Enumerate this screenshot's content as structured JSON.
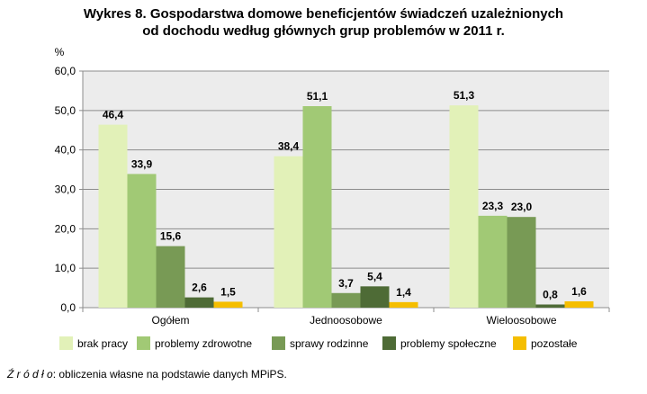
{
  "title": {
    "line1": "Wykres 8. Gospodarstwa domowe beneficjentów świadczeń uzależnionych",
    "line2": "od dochodu według głównych grup problemów w 2011 r."
  },
  "source_label": "Ź r ó d ł o",
  "source_text": ": obliczenia własne na podstawie danych MPiPS.",
  "colors": {
    "brak pracy": "#e2f1b8",
    "problemy zdrowotne": "#a1c975",
    "sprawy rodzinne": "#789a55",
    "problemy społeczne": "#4e6b36",
    "pozostałe": "#f5be00",
    "plot_bg": "#ececec"
  },
  "chart_data": {
    "type": "bar",
    "title": "Wykres 8. Gospodarstwa domowe beneficjentów świadczeń uzależnionych od dochodu według głównych grup problemów w 2011 r.",
    "ylabel": "%",
    "xlabel": "",
    "ylim": [
      0,
      60
    ],
    "yticks": [
      0,
      10,
      20,
      30,
      40,
      50,
      60
    ],
    "ytick_labels": [
      "0,0",
      "10,0",
      "20,0",
      "30,0",
      "40,0",
      "50,0",
      "60,0"
    ],
    "grid": true,
    "legend_position": "bottom",
    "categories": [
      "Ogółem",
      "Jednoosobowe",
      "Wieloosobowe"
    ],
    "series": [
      {
        "name": "brak pracy",
        "values": [
          46.4,
          38.4,
          51.3
        ],
        "labels": [
          "46,4",
          "38,4",
          "51,3"
        ]
      },
      {
        "name": "problemy zdrowotne",
        "values": [
          33.9,
          51.1,
          23.3
        ],
        "labels": [
          "33,9",
          "51,1",
          "23,3"
        ]
      },
      {
        "name": "sprawy rodzinne",
        "values": [
          15.6,
          3.7,
          23.0
        ],
        "labels": [
          "15,6",
          "3,7",
          "23,0"
        ]
      },
      {
        "name": "problemy społeczne",
        "values": [
          2.6,
          5.4,
          0.8
        ],
        "labels": [
          "2,6",
          "5,4",
          "0,8"
        ]
      },
      {
        "name": "pozostałe",
        "values": [
          1.5,
          1.4,
          1.6
        ],
        "labels": [
          "1,5",
          "1,4",
          "1,6"
        ]
      }
    ]
  }
}
